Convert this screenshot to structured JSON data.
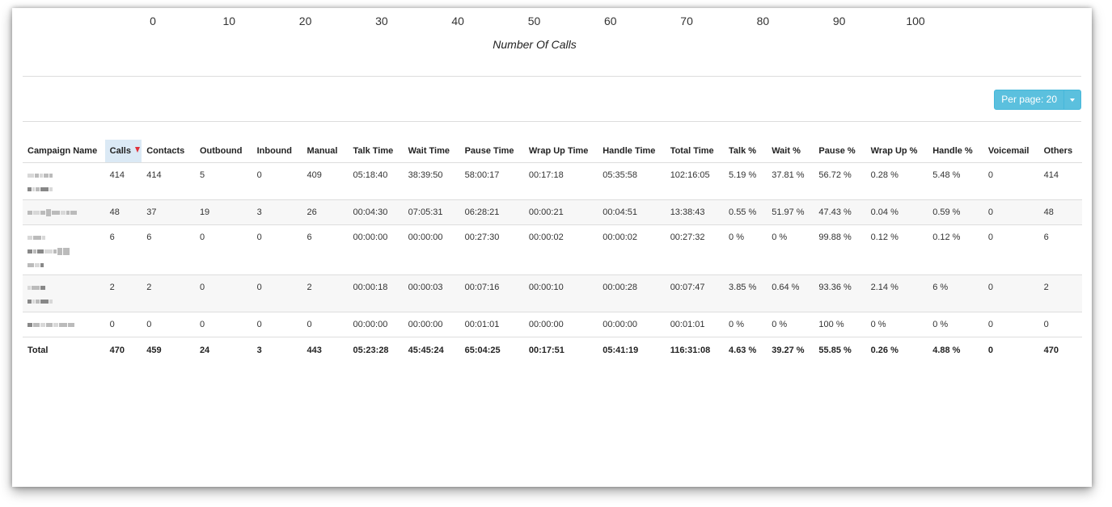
{
  "chart_data": {
    "type": "bar",
    "xlabel": "Number Of Calls",
    "x_ticks": [
      "0",
      "10",
      "20",
      "30",
      "40",
      "50",
      "60",
      "70",
      "80",
      "90",
      "100"
    ],
    "xlim": [
      0,
      100
    ]
  },
  "controls": {
    "per_page_label": "Per page: 20"
  },
  "table": {
    "columns": [
      "Campaign Name",
      "Calls",
      "Contacts",
      "Outbound",
      "Inbound",
      "Manual",
      "Talk Time",
      "Wait Time",
      "Pause Time",
      "Wrap Up Time",
      "Handle Time",
      "Total Time",
      "Talk %",
      "Wait %",
      "Pause %",
      "Wrap Up %",
      "Handle %",
      "Voicemail",
      "Others"
    ],
    "sorted_column": "Calls",
    "rows": [
      [
        "",
        "414",
        "414",
        "5",
        "0",
        "409",
        "05:18:40",
        "38:39:50",
        "58:00:17",
        "00:17:18",
        "05:35:58",
        "102:16:05",
        "5.19 %",
        "37.81 %",
        "56.72 %",
        "0.28 %",
        "5.48 %",
        "0",
        "414"
      ],
      [
        "",
        "48",
        "37",
        "19",
        "3",
        "26",
        "00:04:30",
        "07:05:31",
        "06:28:21",
        "00:00:21",
        "00:04:51",
        "13:38:43",
        "0.55 %",
        "51.97 %",
        "47.43 %",
        "0.04 %",
        "0.59 %",
        "0",
        "48"
      ],
      [
        "",
        "6",
        "6",
        "0",
        "0",
        "6",
        "00:00:00",
        "00:00:00",
        "00:27:30",
        "00:00:02",
        "00:00:02",
        "00:27:32",
        "0 %",
        "0 %",
        "99.88 %",
        "0.12 %",
        "0.12 %",
        "0",
        "6"
      ],
      [
        "",
        "2",
        "2",
        "0",
        "0",
        "2",
        "00:00:18",
        "00:00:03",
        "00:07:16",
        "00:00:10",
        "00:00:28",
        "00:07:47",
        "3.85 %",
        "0.64 %",
        "93.36 %",
        "2.14 %",
        "6 %",
        "0",
        "2"
      ],
      [
        "",
        "0",
        "0",
        "0",
        "0",
        "0",
        "00:00:00",
        "00:00:00",
        "00:01:01",
        "00:00:00",
        "00:00:00",
        "00:01:01",
        "0 %",
        "0 %",
        "100 %",
        "0 %",
        "0 %",
        "0",
        "0"
      ]
    ],
    "total": [
      "Total",
      "470",
      "459",
      "24",
      "3",
      "443",
      "05:23:28",
      "45:45:24",
      "65:04:25",
      "00:17:51",
      "05:41:19",
      "116:31:08",
      "4.63 %",
      "39.27 %",
      "55.85 %",
      "0.26 %",
      "4.88 %",
      "0",
      "470"
    ]
  },
  "colors": {
    "button_info": "#5bc0de",
    "sorted_header": "#dbe9f5",
    "sort_indicator": "#e0303a",
    "row_stripe": "#f7f7f7"
  }
}
